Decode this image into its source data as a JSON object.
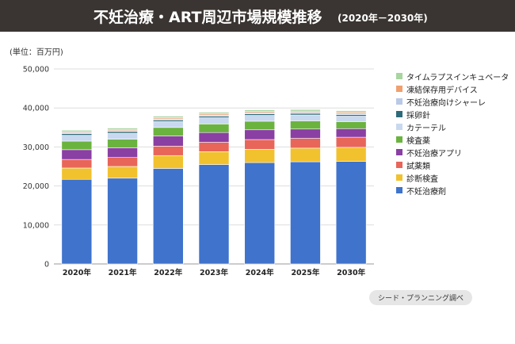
{
  "header": {
    "title": "不妊治療・ART周辺市場規模推移",
    "subtitle": "(2020年－2030年)"
  },
  "unit_label": "(単位：百万円)",
  "source": "シード・プランニング調べ",
  "chart_data": {
    "type": "bar",
    "stacked": true,
    "title": "不妊治療・ART周辺市場規模推移",
    "subtitle": "(2020年－2030年)",
    "ylabel": "(単位：百万円)",
    "categories": [
      "2020年",
      "2021年",
      "2022年",
      "2023年",
      "2024年",
      "2025年",
      "2030年"
    ],
    "ylim": [
      0,
      50000
    ],
    "yticks": [
      "0",
      "10,000",
      "20,000",
      "30,000",
      "40,000",
      "50,000"
    ],
    "ytick_values": [
      0,
      10000,
      20000,
      30000,
      40000,
      50000
    ],
    "grid": true,
    "legend_position": "right",
    "series": [
      {
        "name": "不妊治療剤",
        "color": "#3f73cc",
        "values": [
          21700,
          22000,
          24500,
          25500,
          26000,
          26200,
          26300
        ]
      },
      {
        "name": "診断検査",
        "color": "#f2c12e",
        "values": [
          2900,
          3000,
          3300,
          3300,
          3400,
          3500,
          3600
        ]
      },
      {
        "name": "試薬類",
        "color": "#e8655a",
        "values": [
          2200,
          2300,
          2400,
          2400,
          2500,
          2500,
          2600
        ]
      },
      {
        "name": "不妊治療アプリ",
        "color": "#29a8d8",
        "values": [
          2500,
          2500,
          2600,
          2500,
          2500,
          2400,
          2200
        ]
      },
      {
        "name": "検査薬",
        "color": "#8a3fa3",
        "values": [
          2200,
          2200,
          2200,
          2200,
          2200,
          2100,
          1800
        ]
      },
      {
        "name": "カテーテル",
        "color": "#6bb33f",
        "values": [
          1500,
          1500,
          1500,
          1600,
          1500,
          1500,
          1400
        ]
      },
      {
        "name": "採卵針",
        "color": "#2e6b7a",
        "values": [
          400,
          400,
          400,
          400,
          400,
          400,
          400
        ]
      },
      {
        "name": "不妊治療向けシャーレ",
        "color": "#b9c9e6",
        "values": [
          300,
          300,
          300,
          300,
          300,
          300,
          300
        ]
      },
      {
        "name": "凍結保存用デバイス",
        "color": "#f0a070",
        "values": [
          250,
          300,
          300,
          300,
          300,
          300,
          300
        ]
      },
      {
        "name": "タイムラプスインキュベータ",
        "color": "#a8d5a0",
        "values": [
          350,
          350,
          400,
          400,
          400,
          400,
          400
        ]
      }
    ],
    "colors_fix": {
      "検査薬": "#6bb33f",
      "カテーテル": "#c8d8ee",
      "不妊治療アプリ": "#8a3fa3"
    }
  }
}
